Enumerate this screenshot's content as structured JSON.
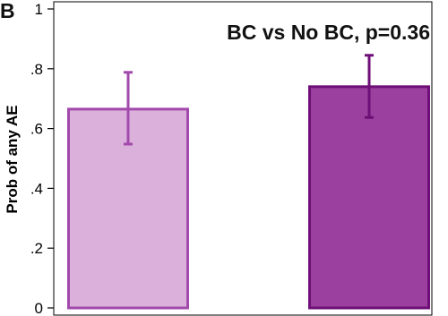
{
  "chart_data": {
    "type": "bar",
    "panel_label": "B",
    "annotation": "BC vs No BC, p=0.36",
    "ylabel": "Prob of any AE",
    "xlabel": "",
    "ylim": [
      0,
      1
    ],
    "yticks": [
      {
        "value": 0,
        "label": "0"
      },
      {
        "value": 0.2,
        "label": ".2"
      },
      {
        "value": 0.4,
        "label": ".4"
      },
      {
        "value": 0.6,
        "label": ".6"
      },
      {
        "value": 0.8,
        "label": ".8"
      },
      {
        "value": 1,
        "label": "1"
      }
    ],
    "grid": false,
    "bars": [
      {
        "value": 0.665,
        "ci_low": 0.548,
        "ci_high": 0.788,
        "fill": "#dbb1dc",
        "stroke": "#a24aac",
        "error_color": "#a24aac"
      },
      {
        "value": 0.74,
        "ci_low": 0.637,
        "ci_high": 0.845,
        "fill": "#9b409f",
        "stroke": "#6e0f77",
        "error_color": "#6e0f77"
      }
    ]
  }
}
